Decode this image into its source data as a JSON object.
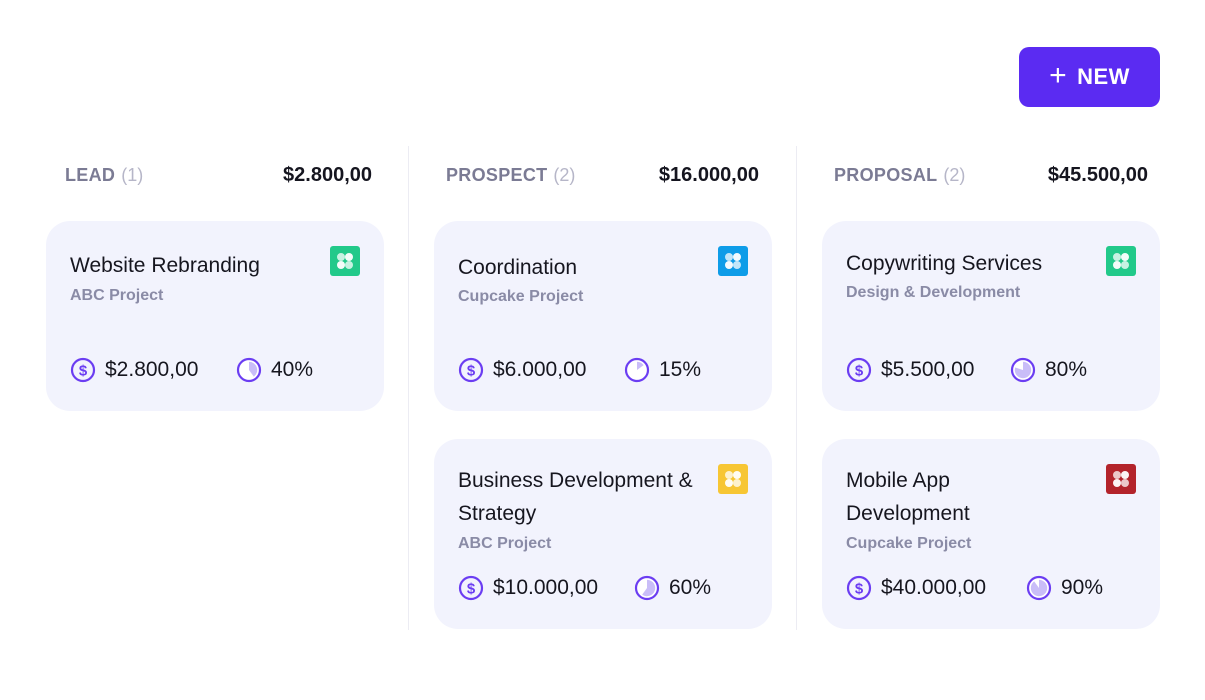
{
  "new_button": {
    "label": "NEW"
  },
  "columns": [
    {
      "name": "LEAD",
      "count": "(1)",
      "total": "$2.800,00",
      "cards": [
        {
          "title": "Website Rebranding",
          "project": "ABC Project",
          "amount": "$2.800,00",
          "probability": "40%",
          "probability_value": 0.4,
          "icon_color": "#22c98a"
        }
      ]
    },
    {
      "name": "PROSPECT",
      "count": "(2)",
      "total": "$16.000,00",
      "cards": [
        {
          "title": "Coordination",
          "project": "Cupcake Project",
          "amount": "$6.000,00",
          "probability": "15%",
          "probability_value": 0.15,
          "icon_color": "#0e9ce8"
        },
        {
          "title": "Business Development & Strategy",
          "project": "ABC Project",
          "amount": "$10.000,00",
          "probability": "60%",
          "probability_value": 0.6,
          "icon_color": "#f7c634"
        }
      ]
    },
    {
      "name": "PROPOSAL",
      "count": "(2)",
      "total": "$45.500,00",
      "cards": [
        {
          "title": "Copywriting Services",
          "project": "Design & Development",
          "amount": "$5.500,00",
          "probability": "80%",
          "probability_value": 0.8,
          "icon_color": "#22c98a"
        },
        {
          "title": "Mobile App Development",
          "project": "Cupcake Project",
          "amount": "$40.000,00",
          "probability": "90%",
          "probability_value": 0.9,
          "icon_color": "#b3232b"
        }
      ]
    }
  ],
  "colors": {
    "accent": "#5b2bf2",
    "card_bg": "#f2f3fd",
    "stat_icon": "#6b3df2"
  },
  "icons": {
    "add": "plus-icon",
    "amount": "dollar-circle-icon",
    "probability": "pie-chart-icon",
    "project": "project-logo-icon"
  }
}
